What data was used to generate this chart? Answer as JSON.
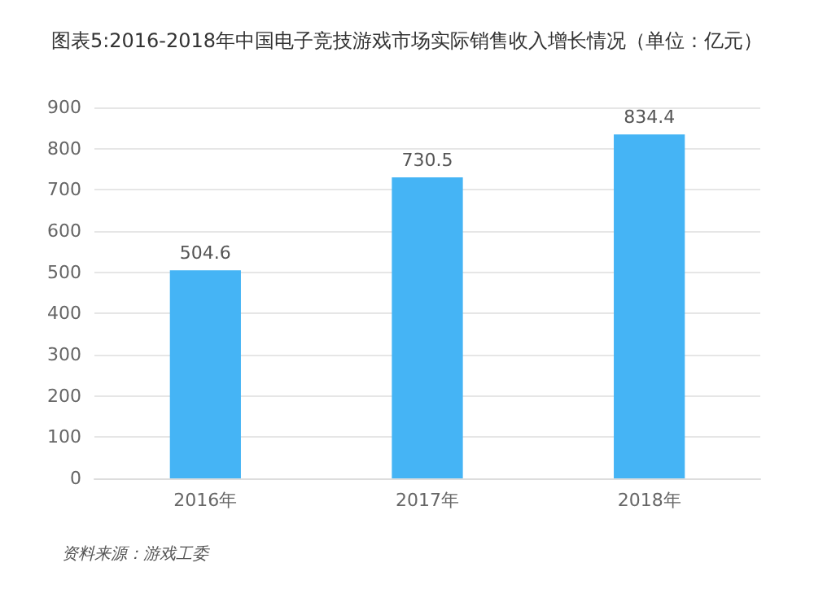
{
  "chart_data": {
    "type": "bar",
    "title": "图表5:2016-2018年中国电子竞技游戏市场实际销售收入增长情况（单位：亿元）",
    "categories": [
      "2016年",
      "2017年",
      "2018年"
    ],
    "values": [
      504.6,
      730.5,
      834.4
    ],
    "color": "#45b4f5",
    "ylim": [
      0,
      900
    ],
    "yticks": [
      0,
      100,
      200,
      300,
      400,
      500,
      600,
      700,
      800,
      900
    ],
    "grid": "y",
    "data_labels": true,
    "annotations": [
      "资料来源：游戏工委"
    ]
  }
}
